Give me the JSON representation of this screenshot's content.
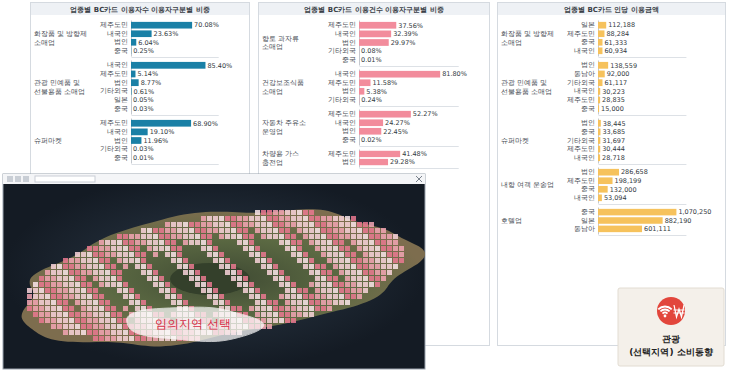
{
  "chart_data": [
    {
      "type": "bar",
      "orientation": "horizontal",
      "title": "업종별 BC카드 이용자수 이용자구분별 비중",
      "color": "#1a80a6",
      "xlim": [
        0,
        100
      ],
      "data_labels": true,
      "tick_labels": "y",
      "series": [
        {
          "name": "화장품 및 방향제 소매업",
          "categories": [
            "제주도민",
            "내국인",
            "법인",
            "중국"
          ],
          "values": [
            70.08,
            23.63,
            6.04,
            0.25
          ],
          "value_labels": [
            "70.08%",
            "23.63%",
            "6.04%",
            "0.25%"
          ]
        },
        {
          "name": "관광 민예품 및 선물용품 소매업",
          "categories": [
            "내국인",
            "제주도민",
            "법인",
            "기타외국",
            "일본",
            "중국"
          ],
          "values": [
            85.4,
            5.14,
            8.77,
            0.61,
            0.05,
            0.03
          ],
          "value_labels": [
            "85.40%",
            "5.14%",
            "8.77%",
            "0.61%",
            "0.05%",
            "0.03%"
          ]
        },
        {
          "name": "슈퍼마켓",
          "categories": [
            "제주도민",
            "내국인",
            "법인",
            "기타외국",
            "중국"
          ],
          "values": [
            68.9,
            19.1,
            11.96,
            0.03,
            0.01
          ],
          "value_labels": [
            "68.90%",
            "19.10%",
            "11.96%",
            "0.03%",
            "0.01%"
          ]
        }
      ]
    },
    {
      "type": "bar",
      "orientation": "horizontal",
      "title": "업종별 BC카드 이용건수 이용자구분별 비중",
      "color": "#f28c9c",
      "xlim": [
        0,
        100
      ],
      "data_labels": true,
      "tick_labels": "y",
      "series": [
        {
          "name": "향토 과자류 소매업",
          "categories": [
            "제주도민",
            "내국인",
            "법인",
            "기타외국",
            "중국"
          ],
          "values": [
            37.56,
            32.39,
            29.97,
            0.08,
            0.01
          ],
          "value_labels": [
            "37.56%",
            "32.39%",
            "29.97%",
            "0.08%",
            "0.01%"
          ]
        },
        {
          "name": "건강보조식품 소매업",
          "categories": [
            "내국인",
            "제주도민",
            "법인",
            "기타외국"
          ],
          "values": [
            81.8,
            11.58,
            5.38,
            0.24
          ],
          "value_labels": [
            "81.80%",
            "11.58%",
            "5.38%",
            "0.24%"
          ]
        },
        {
          "name": "자동차 주유소 운영업",
          "categories": [
            "제주도민",
            "내국인",
            "법인",
            "중국"
          ],
          "values": [
            52.27,
            24.27,
            22.45,
            0.02
          ],
          "value_labels": [
            "52.27%",
            "24.27%",
            "22.45%",
            "0.02%"
          ]
        },
        {
          "name": "차량용 가스 충전업",
          "categories": [
            "제주도민",
            "법인"
          ],
          "values": [
            41.48,
            29.28
          ],
          "value_labels": [
            "41.48%",
            "29.28%"
          ]
        }
      ]
    },
    {
      "type": "bar",
      "orientation": "horizontal",
      "title": "업종별 BC카드 인당 이용금액",
      "color": "#f6c25c",
      "xlim": [
        0,
        1200000
      ],
      "data_labels": true,
      "tick_labels": "y",
      "series": [
        {
          "name": "화장품 및 방향제 소매업",
          "categories": [
            "일본",
            "제주도민",
            "중국",
            "내국인"
          ],
          "values": [
            112188,
            88284,
            61333,
            60934
          ],
          "value_labels": [
            "112,188",
            "88,284",
            "61,333",
            "60,934"
          ]
        },
        {
          "name": "관광 민예품 및 선물용품 소매업",
          "categories": [
            "법인",
            "동남아",
            "기타외국",
            "내국인",
            "제주도민",
            "중국"
          ],
          "values": [
            138559,
            92000,
            61117,
            30223,
            28835,
            15000
          ],
          "value_labels": [
            "138,559",
            "92,000",
            "61,117",
            "30,223",
            "28,835",
            "15,000"
          ]
        },
        {
          "name": "슈퍼마켓",
          "categories": [
            "법인",
            "중국",
            "기타외국",
            "제주도민",
            "내국인"
          ],
          "values": [
            38445,
            33685,
            31697,
            30444,
            28718
          ],
          "value_labels": [
            "38,445",
            "33,685",
            "31,697",
            "30,444",
            "28,718"
          ]
        },
        {
          "name": "내항 여객 운송업",
          "categories": [
            "법인",
            "제주도민",
            "중국",
            "내국인"
          ],
          "values": [
            286658,
            198199,
            132000,
            53094
          ],
          "value_labels": [
            "286,658",
            "198,199",
            "132,000",
            "53,094"
          ]
        },
        {
          "name": "호텔업",
          "categories": [
            "중국",
            "일본",
            "동남아"
          ],
          "values": [
            1070250,
            882190,
            601111
          ],
          "value_labels": [
            "1,070,250",
            "882,190",
            "601,111"
          ]
        }
      ]
    }
  ],
  "map": {
    "label": "임의지역 선택"
  },
  "badge": {
    "title": "관광",
    "subtitle": "(선택지역) 소비동향"
  }
}
